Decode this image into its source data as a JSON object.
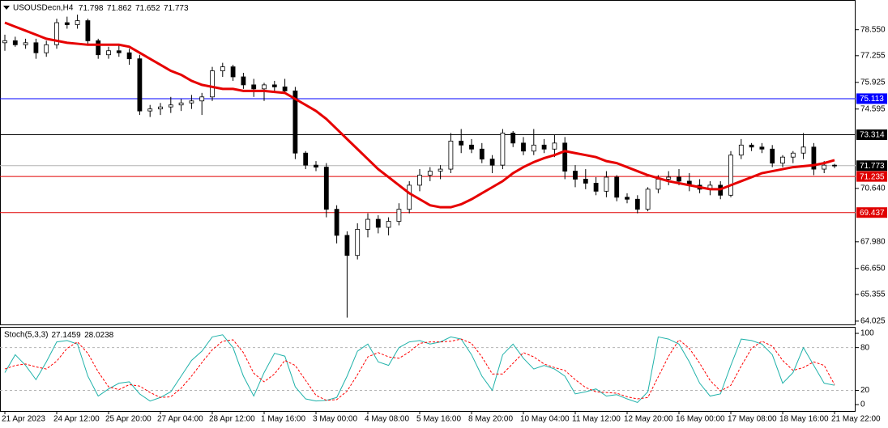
{
  "chart_data": [
    {
      "type": "candlestick",
      "title": "USOUSDecn,H4",
      "categories": [
        "21 Apr 2023",
        null,
        null,
        null,
        null,
        "24 Apr 12:00",
        null,
        null,
        null,
        null,
        "25 Apr 20:00",
        null,
        null,
        null,
        null,
        "27 Apr 04:00",
        null,
        null,
        null,
        null,
        "28 Apr 12:00",
        null,
        null,
        null,
        null,
        "1 May 16:00",
        null,
        null,
        null,
        null,
        "3 May 00:00",
        null,
        null,
        null,
        null,
        "4 May 08:00",
        null,
        null,
        null,
        null,
        "5 May 16:00",
        null,
        null,
        null,
        null,
        "8 May 20:00",
        null,
        null,
        null,
        null,
        "10 May 04:00",
        null,
        null,
        null,
        null,
        "11 May 12:00",
        null,
        null,
        null,
        null,
        "12 May 20:00",
        null,
        null,
        null,
        null,
        "16 May 00:00",
        null,
        null,
        null,
        null,
        "17 May 08:00",
        null,
        null,
        null,
        null,
        "18 May 16:00",
        null,
        null,
        null,
        null,
        "21 May 22:00"
      ],
      "candles": [
        [
          77.9,
          78.3,
          77.5,
          78.0
        ],
        [
          78.0,
          78.2,
          77.7,
          77.8
        ],
        [
          77.8,
          78.1,
          77.6,
          77.9
        ],
        [
          77.9,
          78.1,
          77.1,
          77.4
        ],
        [
          77.4,
          78.0,
          77.2,
          77.8
        ],
        [
          77.8,
          79.1,
          77.6,
          78.9
        ],
        [
          78.9,
          79.2,
          78.6,
          78.8
        ],
        [
          78.8,
          79.3,
          78.6,
          79.0
        ],
        [
          79.0,
          79.1,
          77.8,
          78.0
        ],
        [
          78.0,
          78.1,
          77.1,
          77.3
        ],
        [
          77.3,
          77.7,
          77.1,
          77.5
        ],
        [
          77.5,
          77.8,
          77.2,
          77.4
        ],
        [
          77.4,
          77.6,
          76.8,
          77.1
        ],
        [
          77.1,
          77.3,
          74.3,
          74.5
        ],
        [
          74.5,
          74.8,
          74.2,
          74.6
        ],
        [
          74.6,
          74.9,
          74.3,
          74.7
        ],
        [
          74.7,
          75.2,
          74.4,
          74.8
        ],
        [
          74.8,
          75.1,
          74.5,
          74.9
        ],
        [
          74.9,
          75.3,
          74.6,
          75.0
        ],
        [
          75.0,
          75.4,
          74.3,
          75.2
        ],
        [
          75.2,
          76.7,
          75.0,
          76.5
        ],
        [
          76.5,
          76.9,
          76.2,
          76.7
        ],
        [
          76.7,
          76.8,
          76.0,
          76.2
        ],
        [
          76.2,
          76.4,
          75.6,
          75.8
        ],
        [
          75.8,
          76.1,
          75.2,
          75.6
        ],
        [
          75.6,
          75.9,
          75.0,
          75.8
        ],
        [
          75.8,
          76.0,
          75.4,
          75.7
        ],
        [
          75.7,
          76.1,
          75.4,
          75.5
        ],
        [
          75.5,
          75.7,
          72.1,
          72.4
        ],
        [
          72.4,
          72.5,
          71.6,
          71.8
        ],
        [
          71.8,
          72.0,
          71.5,
          71.7
        ],
        [
          71.7,
          71.9,
          69.2,
          69.6
        ],
        [
          69.6,
          69.8,
          67.9,
          68.3
        ],
        [
          68.3,
          68.5,
          64.2,
          67.3
        ],
        [
          67.3,
          68.9,
          67.1,
          68.6
        ],
        [
          68.6,
          69.4,
          68.2,
          69.1
        ],
        [
          69.1,
          69.3,
          68.4,
          68.7
        ],
        [
          68.7,
          69.2,
          68.3,
          69.0
        ],
        [
          69.0,
          69.9,
          68.8,
          69.6
        ],
        [
          69.6,
          71.0,
          69.4,
          70.8
        ],
        [
          70.8,
          71.6,
          70.5,
          71.3
        ],
        [
          71.3,
          71.7,
          71.0,
          71.5
        ],
        [
          71.5,
          71.8,
          71.1,
          71.6
        ],
        [
          71.6,
          73.4,
          71.4,
          73.0
        ],
        [
          73.0,
          73.6,
          72.4,
          72.8
        ],
        [
          72.8,
          73.1,
          72.4,
          72.6
        ],
        [
          72.6,
          72.9,
          71.9,
          72.1
        ],
        [
          72.1,
          72.3,
          71.4,
          71.8
        ],
        [
          71.8,
          73.6,
          71.6,
          73.4
        ],
        [
          73.4,
          73.5,
          72.7,
          72.9
        ],
        [
          72.9,
          73.2,
          72.3,
          72.5
        ],
        [
          72.5,
          73.6,
          72.3,
          72.8
        ],
        [
          72.8,
          73.1,
          72.4,
          72.6
        ],
        [
          72.6,
          73.3,
          72.2,
          72.9
        ],
        [
          72.9,
          73.2,
          71.1,
          71.5
        ],
        [
          71.5,
          71.8,
          70.7,
          71.1
        ],
        [
          71.1,
          71.6,
          70.6,
          70.9
        ],
        [
          70.9,
          71.2,
          70.3,
          70.5
        ],
        [
          70.5,
          71.5,
          70.2,
          71.2
        ],
        [
          71.2,
          71.3,
          70.0,
          70.2
        ],
        [
          70.2,
          70.4,
          69.9,
          70.1
        ],
        [
          70.1,
          70.3,
          69.4,
          69.6
        ],
        [
          69.6,
          70.7,
          69.5,
          70.6
        ],
        [
          70.6,
          71.3,
          70.4,
          71.1
        ],
        [
          71.1,
          71.5,
          70.8,
          71.2
        ],
        [
          71.2,
          71.6,
          70.8,
          71.0
        ],
        [
          71.0,
          71.4,
          70.5,
          70.8
        ],
        [
          70.8,
          71.1,
          70.4,
          70.6
        ],
        [
          70.6,
          71.0,
          70.3,
          70.8
        ],
        [
          70.8,
          71.0,
          70.1,
          70.3
        ],
        [
          70.3,
          72.5,
          70.2,
          72.3
        ],
        [
          72.3,
          73.1,
          72.1,
          72.8
        ],
        [
          72.8,
          72.9,
          72.5,
          72.7
        ],
        [
          72.7,
          72.9,
          72.4,
          72.6
        ],
        [
          72.6,
          72.8,
          71.7,
          71.9
        ],
        [
          71.9,
          72.3,
          71.7,
          72.2
        ],
        [
          72.2,
          72.5,
          71.9,
          72.4
        ],
        [
          72.4,
          73.4,
          72.1,
          72.7
        ],
        [
          72.7,
          72.9,
          71.3,
          71.6
        ],
        [
          71.6,
          72.0,
          71.4,
          71.798
        ],
        [
          71.798,
          71.862,
          71.652,
          71.773
        ]
      ],
      "up_color": "#ffffff",
      "down_color": "#000000",
      "ma": {
        "color": "#e60000",
        "values": [
          78.9,
          78.7,
          78.5,
          78.3,
          78.1,
          78.0,
          77.9,
          77.85,
          77.8,
          77.8,
          77.8,
          77.8,
          77.7,
          77.4,
          77.1,
          76.8,
          76.5,
          76.3,
          76.0,
          75.8,
          75.7,
          75.6,
          75.6,
          75.5,
          75.5,
          75.5,
          75.45,
          75.4,
          75.1,
          74.8,
          74.5,
          74.1,
          73.6,
          73.1,
          72.6,
          72.1,
          71.6,
          71.2,
          70.8,
          70.4,
          70.1,
          69.8,
          69.7,
          69.7,
          69.85,
          70.1,
          70.4,
          70.7,
          71.0,
          71.4,
          71.7,
          71.95,
          72.15,
          72.3,
          72.5,
          72.4,
          72.3,
          72.2,
          72.0,
          71.9,
          71.7,
          71.5,
          71.3,
          71.15,
          71.0,
          70.9,
          70.8,
          70.7,
          70.6,
          70.6,
          70.8,
          71.0,
          71.2,
          71.4,
          71.5,
          71.6,
          71.7,
          71.75,
          71.8,
          71.9,
          72.05
        ]
      },
      "levels": [
        {
          "value": 75.113,
          "color": "#0000ff"
        },
        {
          "value": 73.314,
          "color": "#000000"
        },
        {
          "value": 71.235,
          "color": "#e00000"
        },
        {
          "value": 69.437,
          "color": "#e00000"
        }
      ],
      "price_line_color": "#b4b4b4",
      "ylim": [
        63.86,
        79.99
      ],
      "yticks": [
        {
          "value": 78.55,
          "label": "78.550"
        },
        {
          "value": 77.255,
          "label": "77.255"
        },
        {
          "value": 75.925,
          "label": "75.925"
        },
        {
          "value": 74.595,
          "label": "74.595"
        },
        {
          "value": 70.64,
          "label": "70.640"
        },
        {
          "value": 67.98,
          "label": "67.980"
        },
        {
          "value": 66.65,
          "label": "66.650"
        },
        {
          "value": 65.355,
          "label": "65.355"
        },
        {
          "value": 64.025,
          "label": "64.025"
        }
      ]
    },
    {
      "type": "stochastic",
      "title": "Stoch(5,3,3)",
      "series": [
        {
          "color": "#20b2aa",
          "values": [
            45,
            70,
            55,
            35,
            60,
            88,
            90,
            85,
            40,
            12,
            22,
            30,
            32,
            15,
            5,
            10,
            18,
            40,
            62,
            75,
            95,
            98,
            80,
            40,
            12,
            45,
            72,
            68,
            25,
            8,
            5,
            6,
            10,
            40,
            75,
            85,
            60,
            55,
            80,
            88,
            90,
            85,
            88,
            95,
            92,
            70,
            40,
            20,
            70,
            85,
            65,
            50,
            55,
            50,
            40,
            15,
            18,
            22,
            12,
            14,
            8,
            3,
            18,
            95,
            92,
            85,
            60,
            30,
            12,
            15,
            55,
            92,
            90,
            85,
            70,
            30,
            45,
            80,
            55,
            30,
            27.1459
          ]
        },
        {
          "color": "#ff0000",
          "dash": true,
          "values": [
            50,
            55,
            57,
            53,
            50,
            61,
            79,
            88,
            72,
            46,
            25,
            21,
            28,
            26,
            17,
            10,
            11,
            23,
            40,
            59,
            77,
            89,
            91,
            73,
            44,
            32,
            43,
            62,
            55,
            34,
            13,
            6,
            7,
            19,
            42,
            67,
            73,
            67,
            65,
            74,
            86,
            88,
            88,
            89,
            92,
            86,
            67,
            43,
            43,
            58,
            73,
            67,
            57,
            52,
            48,
            35,
            24,
            18,
            17,
            16,
            11,
            8,
            10,
            39,
            68,
            91,
            79,
            58,
            34,
            19,
            27,
            54,
            79,
            89,
            82,
            62,
            48,
            52,
            60,
            55,
            28.0238
          ]
        }
      ],
      "ylim": [
        -9,
        108
      ],
      "yticks": [
        100,
        80,
        20,
        0
      ],
      "levels": [
        80,
        20
      ]
    }
  ]
}
